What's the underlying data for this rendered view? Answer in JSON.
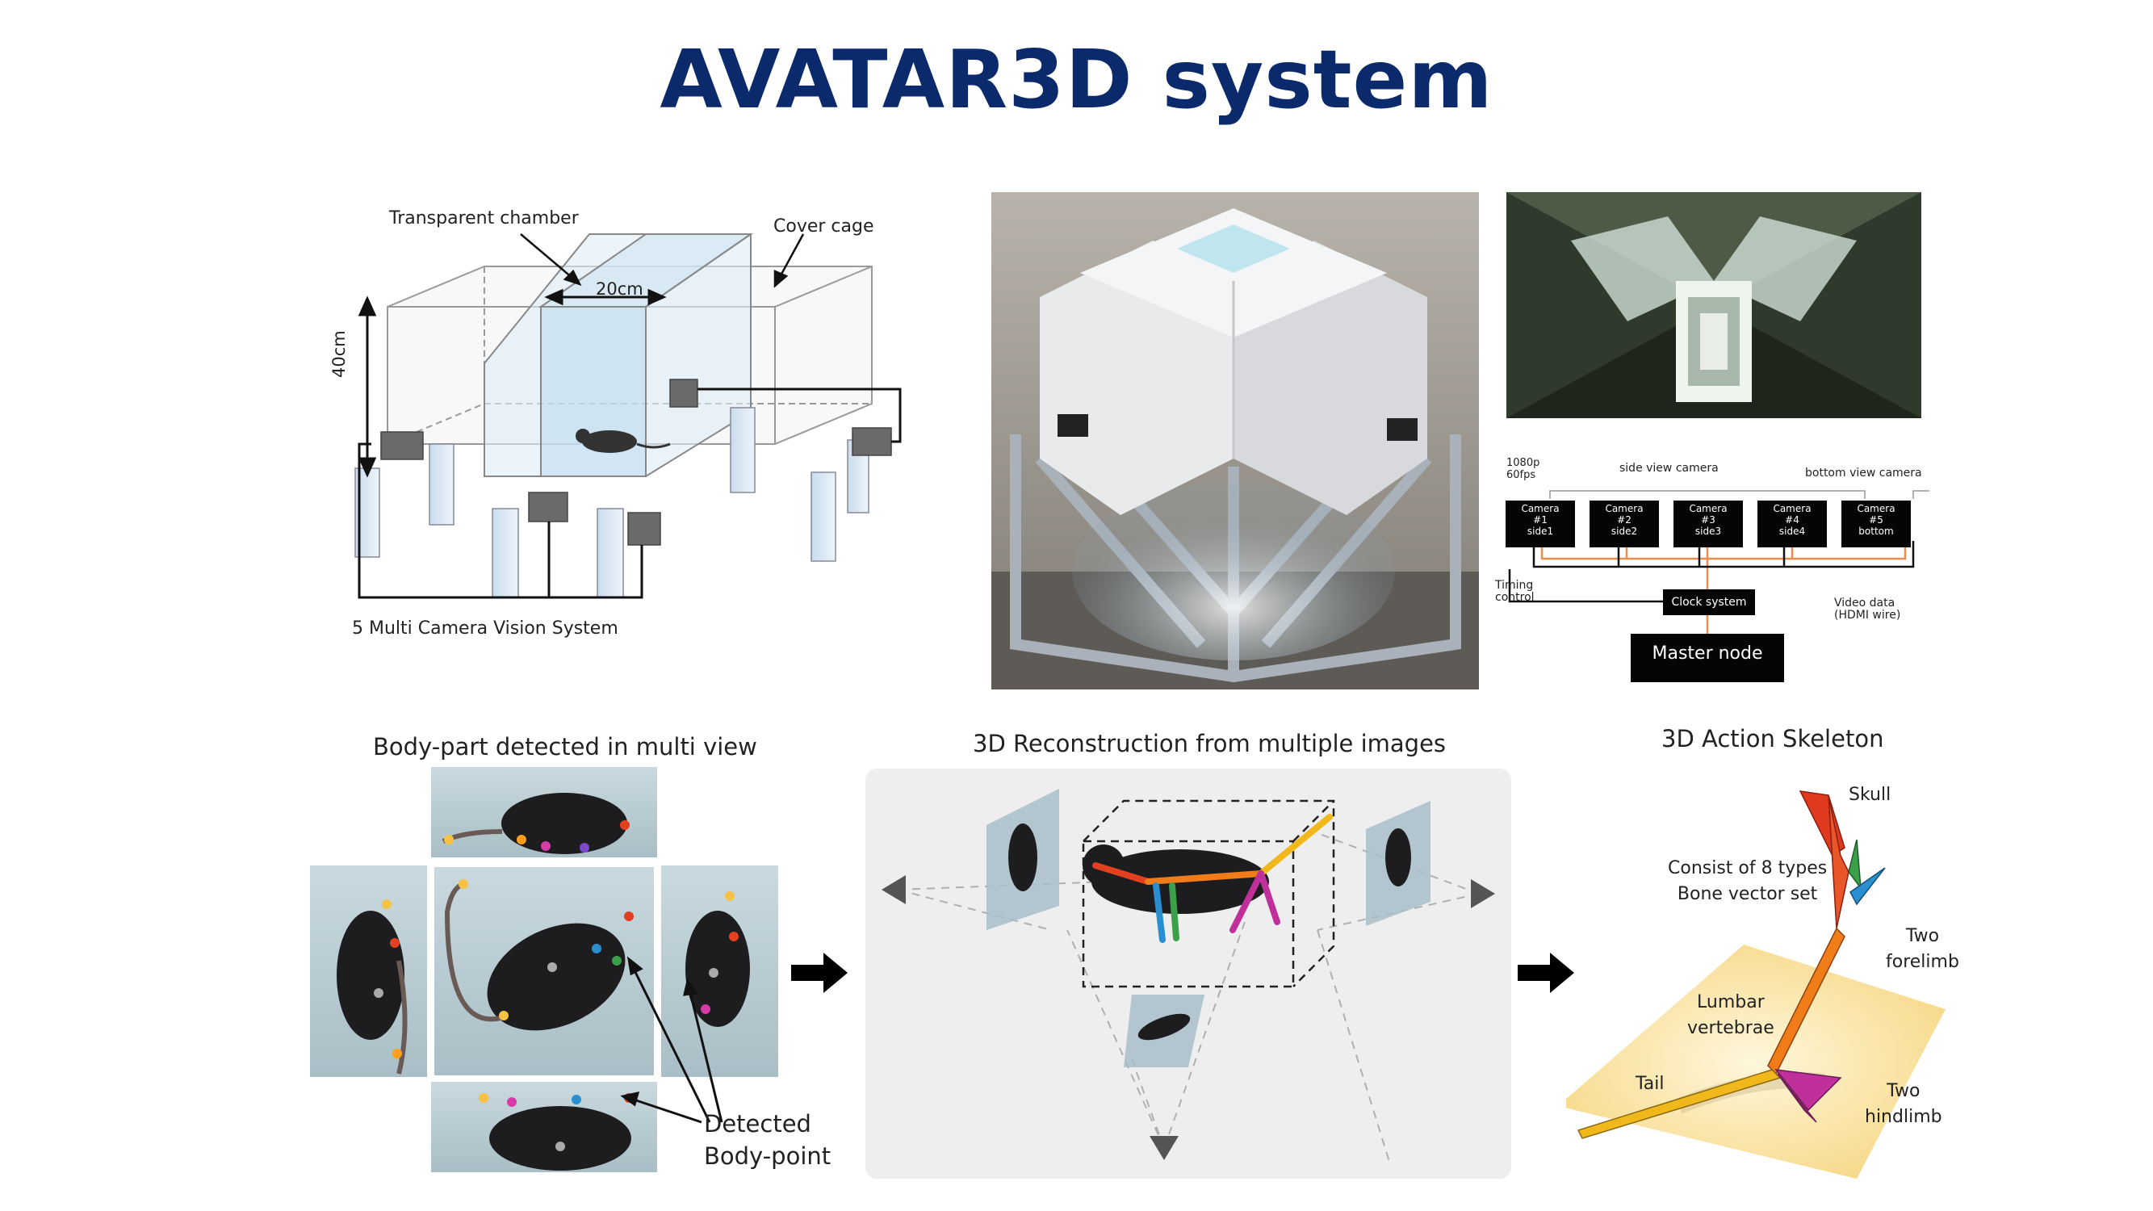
{
  "title": "AVATAR3D system",
  "chamber": {
    "transparent_chamber": "Transparent chamber",
    "cover_cage": "Cover cage",
    "width_dim": "20cm",
    "height_dim": "40cm",
    "system_label": "5 Multi Camera Vision System"
  },
  "camera_diagram": {
    "spec": [
      "1080p",
      "60fps"
    ],
    "side_view": "side view camera",
    "bottom_view": "bottom view camera",
    "cameras": [
      {
        "l1": "Camera",
        "l2": "#1",
        "l3": "side1"
      },
      {
        "l1": "Camera",
        "l2": "#2",
        "l3": "side2"
      },
      {
        "l1": "Camera",
        "l2": "#3",
        "l3": "side3"
      },
      {
        "l1": "Camera",
        "l2": "#4",
        "l3": "side4"
      },
      {
        "l1": "Camera",
        "l2": "#5",
        "l3": "bottom"
      }
    ],
    "timing": [
      "Timing",
      "control"
    ],
    "clock": "Clock system",
    "video": [
      "Video data",
      "(HDMI wire)"
    ],
    "master": "Master node"
  },
  "bottom": {
    "multi_view_title": "Body-part detected in multi view",
    "detected": [
      "Detected",
      "Body-point"
    ],
    "recon_title": "3D Reconstruction from multiple images",
    "skeleton_title": "3D Action Skeleton",
    "skull": "Skull",
    "consist": [
      "Consist of 8 types",
      "Bone vector set"
    ],
    "forelimb": [
      "Two",
      "forelimb"
    ],
    "lumbar": [
      "Lumbar",
      "vertebrae"
    ],
    "tail": "Tail",
    "hindlimb": [
      "Two",
      "hindlimb"
    ]
  },
  "colors": {
    "title": "#0b2a6b",
    "skull": "#e03a1e",
    "forelimb_a": "#3aa04a",
    "forelimb_b": "#2a8fd0",
    "lumbar": "#f07c1a",
    "tail": "#f0b81a",
    "hindlimb": "#c0309a"
  }
}
